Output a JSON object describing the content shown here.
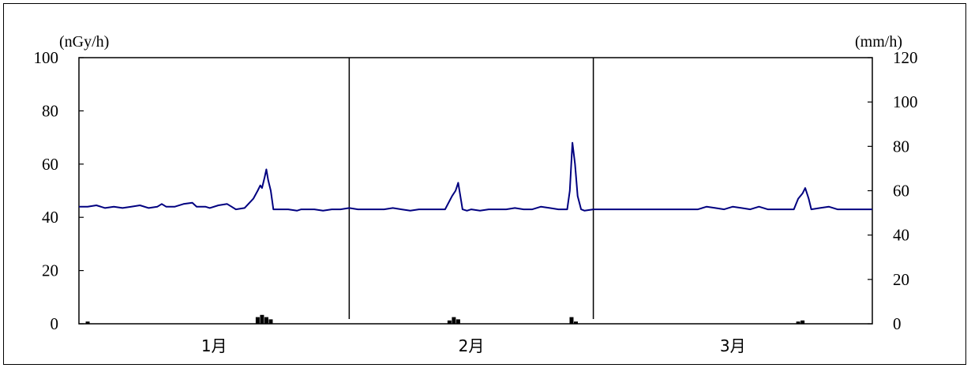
{
  "chart_data": {
    "type": "line",
    "left_axis": {
      "unit": "(nGy/h)",
      "range": [
        0,
        100
      ],
      "ticks": [
        "0",
        "20",
        "40",
        "60",
        "80",
        "100"
      ]
    },
    "right_axis": {
      "unit": "(mm/h)",
      "range": [
        0,
        120
      ],
      "ticks": [
        "0",
        "20",
        "40",
        "60",
        "80",
        "100",
        "120"
      ]
    },
    "x_axis": {
      "range_days": [
        0,
        91
      ],
      "categories": [
        "1月",
        "2月",
        "3月"
      ]
    },
    "month_separators": [
      31,
      59
    ],
    "series": [
      {
        "axis": "left",
        "color": "#000080",
        "points": [
          [
            0,
            44
          ],
          [
            1,
            44
          ],
          [
            2,
            44.5
          ],
          [
            3,
            43.5
          ],
          [
            4,
            44
          ],
          [
            5,
            43.5
          ],
          [
            6,
            44
          ],
          [
            7,
            44.5
          ],
          [
            8,
            43.5
          ],
          [
            9,
            44
          ],
          [
            9.5,
            45
          ],
          [
            10,
            44
          ],
          [
            11,
            44
          ],
          [
            12,
            45
          ],
          [
            13,
            45.5
          ],
          [
            13.5,
            44
          ],
          [
            14.5,
            44
          ],
          [
            15,
            43.5
          ],
          [
            16,
            44.5
          ],
          [
            17,
            45
          ],
          [
            17.5,
            44
          ],
          [
            18,
            43
          ],
          [
            19,
            43.5
          ],
          [
            20,
            47
          ],
          [
            20.5,
            50
          ],
          [
            20.8,
            52
          ],
          [
            21,
            51
          ],
          [
            21.3,
            55
          ],
          [
            21.5,
            58
          ],
          [
            21.7,
            54
          ],
          [
            22,
            50
          ],
          [
            22.3,
            43
          ],
          [
            23,
            43
          ],
          [
            24,
            43
          ],
          [
            25,
            42.5
          ],
          [
            25.5,
            43
          ],
          [
            26,
            43
          ],
          [
            27,
            43
          ],
          [
            28,
            42.5
          ],
          [
            29,
            43
          ],
          [
            30,
            43
          ],
          [
            31,
            43.5
          ],
          [
            32,
            43
          ],
          [
            33,
            43
          ],
          [
            34,
            43
          ],
          [
            35,
            43
          ],
          [
            36,
            43.5
          ],
          [
            37,
            43
          ],
          [
            38,
            42.5
          ],
          [
            39,
            43
          ],
          [
            40,
            43
          ],
          [
            41,
            43
          ],
          [
            42,
            43
          ],
          [
            42.8,
            48
          ],
          [
            43.2,
            50
          ],
          [
            43.5,
            53
          ],
          [
            43.8,
            47
          ],
          [
            44,
            43
          ],
          [
            44.5,
            42.5
          ],
          [
            45,
            43
          ],
          [
            46,
            42.5
          ],
          [
            47,
            43
          ],
          [
            48,
            43
          ],
          [
            49,
            43
          ],
          [
            50,
            43.5
          ],
          [
            51,
            43
          ],
          [
            52,
            43
          ],
          [
            53,
            44
          ],
          [
            54,
            43.5
          ],
          [
            55,
            43
          ],
          [
            56,
            43
          ],
          [
            56.3,
            50
          ],
          [
            56.6,
            68
          ],
          [
            56.9,
            60
          ],
          [
            57.2,
            48
          ],
          [
            57.6,
            43
          ],
          [
            58,
            42.5
          ],
          [
            59,
            43
          ],
          [
            60,
            43
          ],
          [
            61,
            43
          ],
          [
            62,
            43
          ],
          [
            63,
            43
          ],
          [
            64,
            43
          ],
          [
            65,
            43
          ],
          [
            66,
            43
          ],
          [
            67,
            43
          ],
          [
            68,
            43
          ],
          [
            69,
            43
          ],
          [
            70,
            43
          ],
          [
            71,
            43
          ],
          [
            72,
            44
          ],
          [
            73,
            43.5
          ],
          [
            74,
            43
          ],
          [
            75,
            44
          ],
          [
            76,
            43.5
          ],
          [
            77,
            43
          ],
          [
            78,
            44
          ],
          [
            79,
            43
          ],
          [
            80,
            43
          ],
          [
            81,
            43
          ],
          [
            82,
            43
          ],
          [
            82.5,
            47
          ],
          [
            83,
            49
          ],
          [
            83.3,
            51
          ],
          [
            83.7,
            47
          ],
          [
            84,
            43
          ],
          [
            85,
            43.5
          ],
          [
            86,
            44
          ],
          [
            87,
            43
          ],
          [
            88,
            43
          ],
          [
            89,
            43
          ],
          [
            90,
            43
          ],
          [
            91,
            43
          ]
        ]
      },
      {
        "axis": "right",
        "type": "bar",
        "color": "#000000",
        "points": [
          [
            1,
            1
          ],
          [
            20.5,
            3
          ],
          [
            21,
            4
          ],
          [
            21.5,
            3
          ],
          [
            22,
            2
          ],
          [
            42.5,
            1.5
          ],
          [
            43,
            3
          ],
          [
            43.5,
            2
          ],
          [
            56.5,
            3
          ],
          [
            57,
            1
          ],
          [
            82.5,
            1
          ],
          [
            83,
            1.5
          ]
        ]
      }
    ]
  }
}
